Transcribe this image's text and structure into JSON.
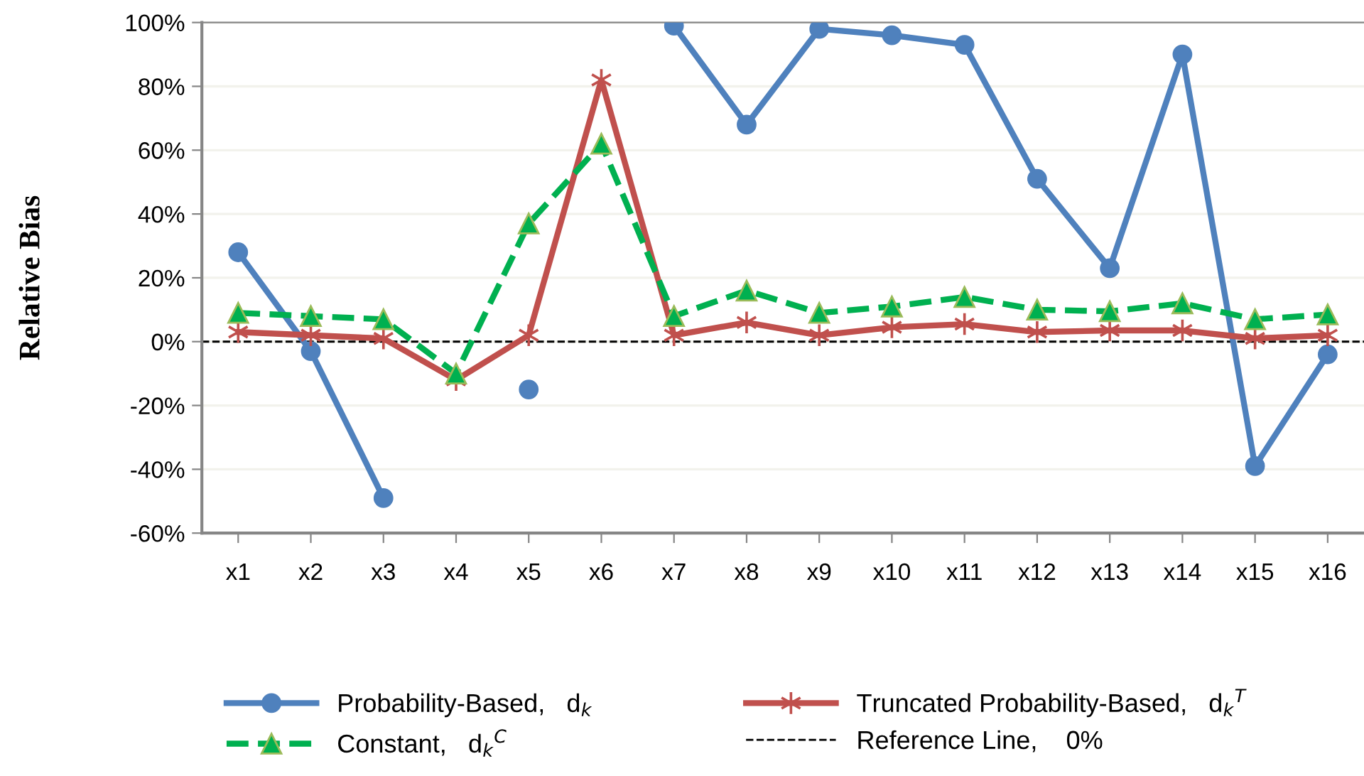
{
  "chart_data": {
    "type": "line",
    "ylabel": "Relative Bias",
    "categories": [
      "x1",
      "x2",
      "x3",
      "x4",
      "x5",
      "x6",
      "x7",
      "x8",
      "x9",
      "x10",
      "x11",
      "x12",
      "x13",
      "x14",
      "x15",
      "x16"
    ],
    "series": [
      {
        "name": "Probability-Based,   d$_{k}$",
        "color": "#4f81bd",
        "marker": "circle",
        "line_style": "solid",
        "values": [
          28,
          -3,
          -49,
          null,
          -15,
          null,
          99,
          68,
          98,
          96,
          93,
          51,
          23,
          90,
          -39,
          -4
        ]
      },
      {
        "name": "Truncated Probability-Based,   d$_{k}$$^{T}$",
        "color": "#c0504d",
        "marker": "cross",
        "line_style": "solid",
        "values": [
          3,
          2,
          1,
          -12,
          2,
          82,
          2,
          6,
          2,
          4.5,
          5.5,
          3,
          3.5,
          3.5,
          1,
          2
        ]
      },
      {
        "name": "Constant,   d$_{k}$$^{C}$",
        "color": "#00b050",
        "marker": "triangle",
        "line_style": "dashed",
        "values": [
          9,
          8,
          7,
          -10,
          37,
          62,
          8,
          16,
          9,
          11,
          14,
          10,
          9.5,
          12,
          7,
          8.5
        ]
      }
    ],
    "ref_lines": [
      {
        "axis": "y",
        "value": 0,
        "label": "Reference Line,    0%",
        "color": "#000000",
        "line_style": "dashed"
      }
    ],
    "ylim": [
      -60,
      100
    ],
    "yticks": [
      {
        "value": -60,
        "label": "-60%"
      },
      {
        "value": -40,
        "label": "-40%"
      },
      {
        "value": -20,
        "label": "-20%"
      },
      {
        "value": 0,
        "label": "0%"
      },
      {
        "value": 20,
        "label": "20%"
      },
      {
        "value": 40,
        "label": "40%"
      },
      {
        "value": 60,
        "label": "60%"
      },
      {
        "value": 80,
        "label": "80%"
      },
      {
        "value": 100,
        "label": "100%"
      }
    ],
    "grid": "y",
    "legend": "bottom"
  }
}
